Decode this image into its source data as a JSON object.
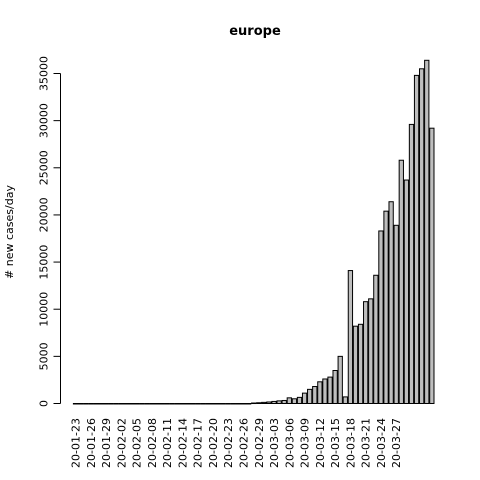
{
  "chart_data": {
    "type": "bar",
    "title": "europe",
    "xlabel": "",
    "ylabel": "# new cases/day",
    "ylim": [
      0,
      37000
    ],
    "yticks": [
      0,
      5000,
      10000,
      15000,
      20000,
      25000,
      30000,
      35000
    ],
    "xtick_labels": [
      "20-01-23",
      "20-01-26",
      "20-01-29",
      "20-02-02",
      "20-02-05",
      "20-02-08",
      "20-02-11",
      "20-02-14",
      "20-02-17",
      "20-02-20",
      "20-02-23",
      "20-02-26",
      "20-02-29",
      "20-03-03",
      "20-03-06",
      "20-03-09",
      "20-03-12",
      "20-03-15",
      "20-03-18",
      "20-03-21",
      "20-03-24",
      "20-03-27"
    ],
    "colors": {
      "bar_fill": "#bebebe",
      "bar_stroke": "#000000"
    },
    "values": [
      0,
      0,
      0,
      0,
      0,
      0,
      0,
      0,
      0,
      0,
      0,
      0,
      0,
      0,
      0,
      0,
      0,
      0,
      0,
      0,
      0,
      0,
      0,
      0,
      0,
      0,
      0,
      0,
      0,
      0,
      0,
      0,
      0,
      0,
      0,
      50,
      80,
      120,
      160,
      220,
      280,
      320,
      600,
      500,
      650,
      1100,
      1500,
      1800,
      2300,
      2600,
      2800,
      3500,
      5000,
      700,
      14100,
      8200,
      8400,
      10800,
      11100,
      13600,
      18300,
      20400,
      21400,
      18900,
      25800,
      23700,
      29600,
      34800,
      35500,
      36400,
      29200
    ]
  }
}
